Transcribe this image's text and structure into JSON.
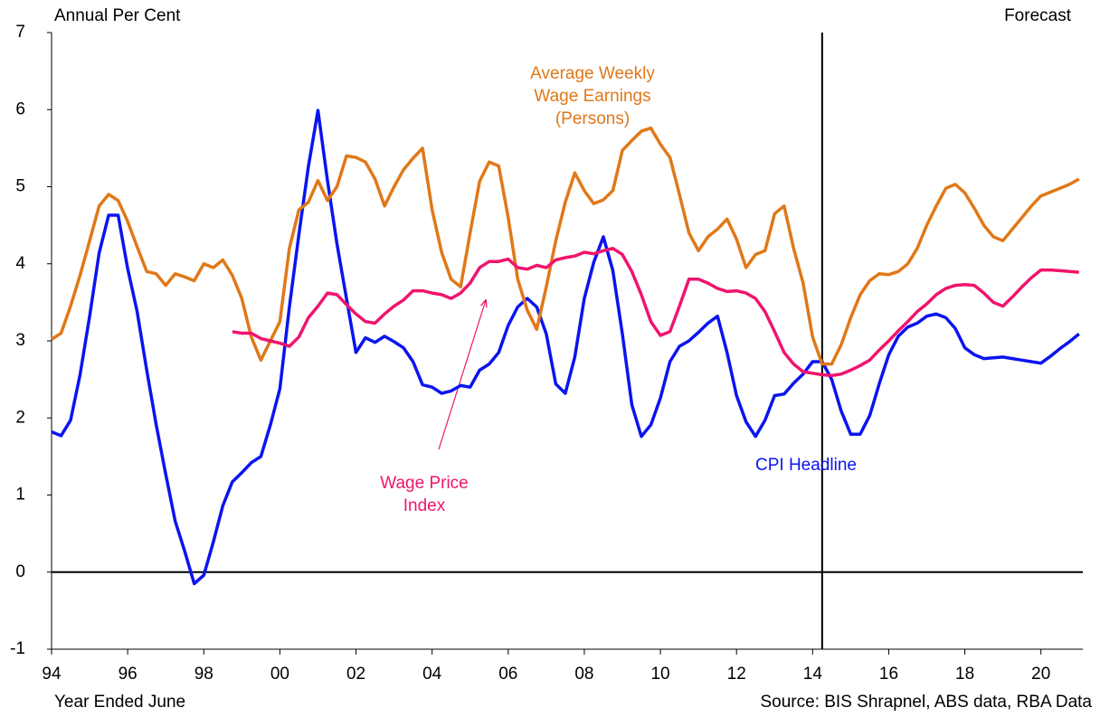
{
  "chart_data": {
    "type": "line",
    "y_axis_label": "Annual Per Cent",
    "x_axis_label": "Year Ended June",
    "forecast_label": "Forecast",
    "source": "Source: BIS Shrapnel, ABS data, RBA Data",
    "forecast_line": 2014.25,
    "xlim": [
      1994,
      2021.1
    ],
    "ylim": [
      -1,
      7
    ],
    "yticks": [
      -1,
      0,
      1,
      2,
      3,
      4,
      5,
      6,
      7
    ],
    "xticks": [
      {
        "value": 1994,
        "label": "94"
      },
      {
        "value": 1996,
        "label": "96"
      },
      {
        "value": 1998,
        "label": "98"
      },
      {
        "value": 2000,
        "label": "00"
      },
      {
        "value": 2002,
        "label": "02"
      },
      {
        "value": 2004,
        "label": "04"
      },
      {
        "value": 2006,
        "label": "06"
      },
      {
        "value": 2008,
        "label": "08"
      },
      {
        "value": 2010,
        "label": "10"
      },
      {
        "value": 2012,
        "label": "12"
      },
      {
        "value": 2014,
        "label": "14"
      },
      {
        "value": 2016,
        "label": "16"
      },
      {
        "value": 2018,
        "label": "18"
      },
      {
        "value": 2020,
        "label": "20"
      }
    ],
    "grid": false,
    "x": [
      1994,
      1994.25,
      1994.5,
      1994.75,
      1995,
      1995.25,
      1995.5,
      1995.75,
      1996,
      1996.25,
      1996.5,
      1996.75,
      1997,
      1997.25,
      1997.5,
      1997.75,
      1998,
      1998.25,
      1998.5,
      1998.75,
      1999,
      1999.25,
      1999.5,
      1999.75,
      2000,
      2000.25,
      2000.5,
      2000.75,
      2001,
      2001.25,
      2001.5,
      2001.75,
      2002,
      2002.25,
      2002.5,
      2002.75,
      2003,
      2003.25,
      2003.5,
      2003.75,
      2004,
      2004.25,
      2004.5,
      2004.75,
      2005,
      2005.25,
      2005.5,
      2005.75,
      2006,
      2006.25,
      2006.5,
      2006.75,
      2007,
      2007.25,
      2007.5,
      2007.75,
      2008,
      2008.25,
      2008.5,
      2008.75,
      2009,
      2009.25,
      2009.5,
      2009.75,
      2010,
      2010.25,
      2010.5,
      2010.75,
      2011,
      2011.25,
      2011.5,
      2011.75,
      2012,
      2012.25,
      2012.5,
      2012.75,
      2013,
      2013.25,
      2013.5,
      2013.75,
      2014,
      2014.25,
      2014.5,
      2014.75,
      2015,
      2015.25,
      2015.5,
      2015.75,
      2016,
      2016.25,
      2016.5,
      2016.75,
      2017,
      2017.25,
      2017.5,
      2017.75,
      2018,
      2018.25,
      2018.5,
      2018.75,
      2019,
      2019.25,
      2019.5,
      2019.75,
      2020,
      2020.25,
      2020.5,
      2020.75,
      2021
    ],
    "series": [
      {
        "name": [
          "CPI Headline"
        ],
        "color": "#0a14f0",
        "values": [
          1.82,
          1.77,
          1.97,
          2.56,
          3.32,
          4.14,
          4.63,
          4.63,
          3.94,
          3.38,
          2.62,
          1.91,
          1.27,
          0.66,
          0.27,
          -0.15,
          -0.04,
          0.39,
          0.86,
          1.17,
          1.29,
          1.42,
          1.5,
          1.91,
          2.38,
          3.44,
          4.38,
          5.26,
          5.99,
          5.08,
          4.26,
          3.55,
          2.85,
          3.04,
          2.98,
          3.06,
          2.99,
          2.91,
          2.73,
          2.43,
          2.4,
          2.32,
          2.35,
          2.42,
          2.4,
          2.62,
          2.7,
          2.85,
          3.2,
          3.44,
          3.55,
          3.44,
          3.09,
          2.44,
          2.32,
          2.79,
          3.55,
          4.02,
          4.35,
          3.91,
          3.09,
          2.17,
          1.76,
          1.91,
          2.26,
          2.73,
          2.93,
          3.0,
          3.11,
          3.23,
          3.32,
          2.85,
          2.29,
          1.95,
          1.76,
          1.97,
          2.29,
          2.31,
          2.45,
          2.57,
          2.73,
          2.73,
          2.5,
          2.09,
          1.79,
          1.79,
          2.03,
          2.44,
          2.82,
          3.06,
          3.18,
          3.23,
          3.32,
          3.35,
          3.3,
          3.16,
          2.91,
          2.82,
          2.77,
          2.78,
          2.79,
          2.77,
          2.75,
          2.73,
          2.71,
          2.8,
          2.9,
          2.99,
          3.09
        ]
      },
      {
        "name": [
          "Average Weekly",
          "Wage Earnings",
          "(Persons)"
        ],
        "color": "#e07818",
        "values": [
          3.02,
          3.1,
          3.45,
          3.85,
          4.3,
          4.75,
          4.9,
          4.82,
          4.55,
          4.22,
          3.9,
          3.87,
          3.72,
          3.87,
          3.83,
          3.78,
          4.0,
          3.95,
          4.05,
          3.85,
          3.55,
          3.05,
          2.75,
          3.0,
          3.25,
          4.2,
          4.7,
          4.8,
          5.08,
          4.82,
          5.0,
          5.4,
          5.38,
          5.32,
          5.1,
          4.75,
          5.0,
          5.22,
          5.37,
          5.5,
          4.7,
          4.15,
          3.8,
          3.7,
          4.4,
          5.07,
          5.32,
          5.27,
          4.6,
          3.8,
          3.4,
          3.15,
          3.7,
          4.3,
          4.8,
          5.18,
          4.95,
          4.78,
          4.83,
          4.95,
          5.47,
          5.6,
          5.72,
          5.76,
          5.55,
          5.38,
          4.9,
          4.4,
          4.17,
          4.35,
          4.45,
          4.58,
          4.32,
          3.95,
          4.12,
          4.17,
          4.65,
          4.75,
          4.2,
          3.75,
          3.05,
          2.7,
          2.7,
          2.95,
          3.3,
          3.6,
          3.78,
          3.87,
          3.86,
          3.9,
          4.0,
          4.2,
          4.5,
          4.75,
          4.98,
          5.03,
          4.92,
          4.72,
          4.5,
          4.35,
          4.3,
          4.45,
          4.6,
          4.75,
          4.88,
          4.93,
          4.98,
          5.03,
          5.1
        ]
      },
      {
        "name": [
          "Wage Price",
          "Index"
        ],
        "color": "#f0146e",
        "values": [
          null,
          null,
          null,
          null,
          null,
          null,
          null,
          null,
          null,
          null,
          null,
          null,
          null,
          null,
          null,
          null,
          null,
          null,
          null,
          3.12,
          3.1,
          3.1,
          3.03,
          3.0,
          2.97,
          2.93,
          3.05,
          3.3,
          3.45,
          3.62,
          3.6,
          3.47,
          3.35,
          3.25,
          3.23,
          3.35,
          3.45,
          3.53,
          3.65,
          3.65,
          3.62,
          3.6,
          3.55,
          3.62,
          3.75,
          3.95,
          4.03,
          4.03,
          4.06,
          3.95,
          3.93,
          3.98,
          3.95,
          4.05,
          4.08,
          4.1,
          4.15,
          4.13,
          4.17,
          4.2,
          4.12,
          3.9,
          3.6,
          3.25,
          3.07,
          3.12,
          3.45,
          3.8,
          3.8,
          3.75,
          3.68,
          3.64,
          3.65,
          3.62,
          3.55,
          3.38,
          3.12,
          2.85,
          2.7,
          2.6,
          2.58,
          2.56,
          2.55,
          2.57,
          2.62,
          2.68,
          2.75,
          2.88,
          3.0,
          3.13,
          3.25,
          3.38,
          3.48,
          3.6,
          3.68,
          3.72,
          3.73,
          3.72,
          3.62,
          3.5,
          3.45,
          3.57,
          3.7,
          3.82,
          3.92,
          3.92,
          3.91,
          3.9,
          3.89
        ]
      }
    ]
  }
}
